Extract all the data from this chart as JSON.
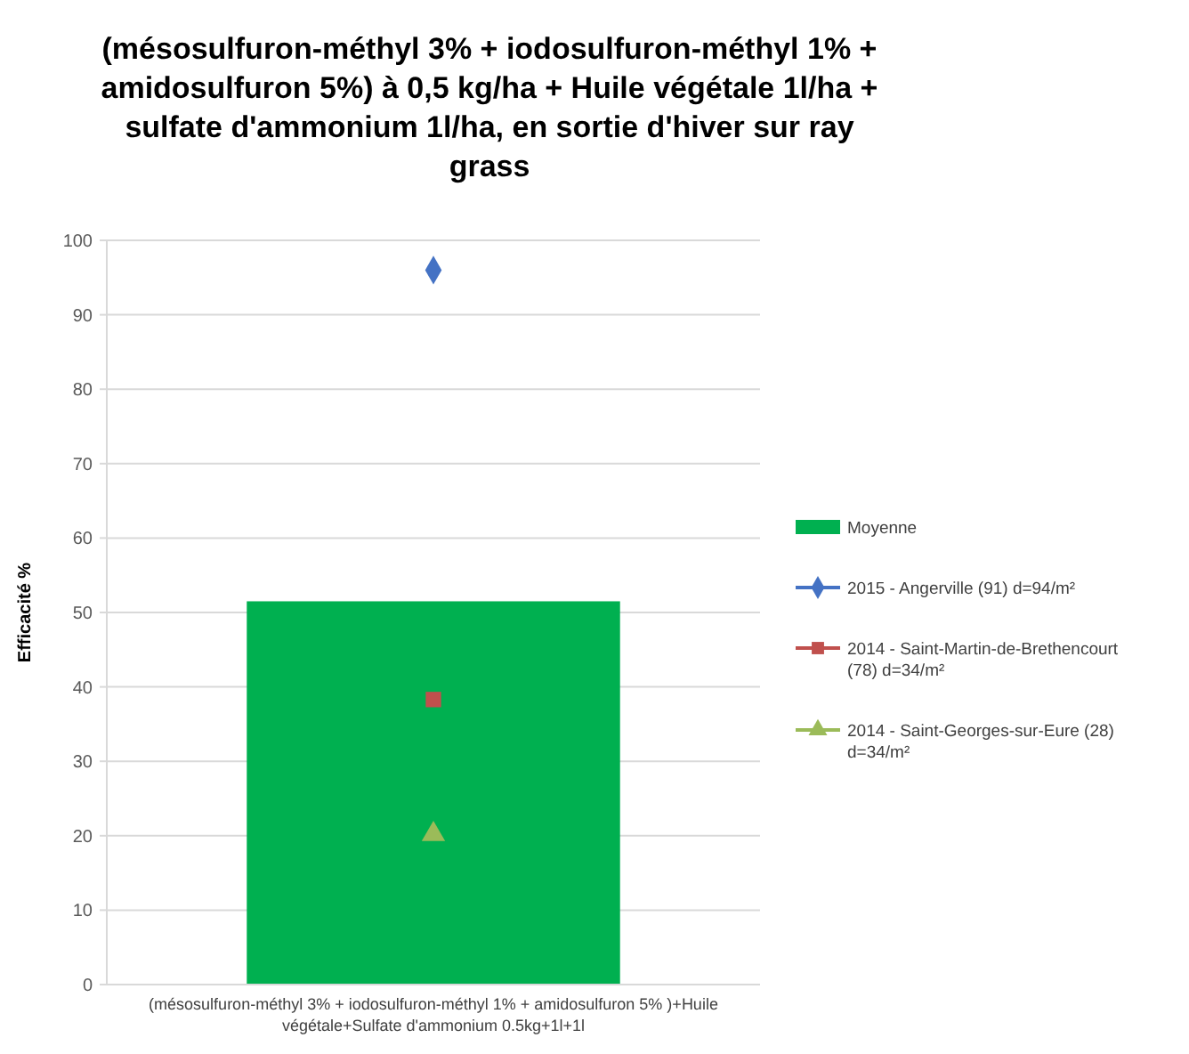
{
  "chart_data": {
    "type": "bar",
    "title": "(mésosulfuron-méthyl 3% + iodosulfuron-méthyl 1% + amidosulfuron 5%) à 0,5 kg/ha + Huile végétale 1l/ha + sulfate d'ammonium 1l/ha, en sortie d'hiver sur ray grass",
    "ylabel": "Efficacité %",
    "categories": [
      "(mésosulfuron-méthyl 3% + iodosulfuron-méthyl 1% + amidosulfuron 5% )+Huile végétale+Sulfate d'ammonium 0.5kg+1l+1l"
    ],
    "series": [
      {
        "name": "Moyenne",
        "color": "#00b050",
        "values": [
          51.5
        ]
      },
      {
        "name": "2015 - Angerville (91) d=94/m²",
        "type": "scatter",
        "marker": "diamond",
        "color": "#4472c4",
        "values": [
          96
        ]
      },
      {
        "name": "2014 - Saint-Martin-de-Brethencourt (78) d=34/m²",
        "type": "scatter",
        "marker": "square",
        "color": "#c0504d",
        "values": [
          38.3
        ]
      },
      {
        "name": "2014 - Saint-Georges-sur-Eure (28) d=34/m²",
        "type": "scatter",
        "marker": "triangle",
        "color": "#9bbb59",
        "values": [
          20.2
        ]
      }
    ],
    "ylim": [
      0,
      100
    ],
    "yticks": [
      0,
      10,
      20,
      30,
      40,
      50,
      60,
      70,
      80,
      90,
      100
    ],
    "grid": "y",
    "legend": "right"
  }
}
